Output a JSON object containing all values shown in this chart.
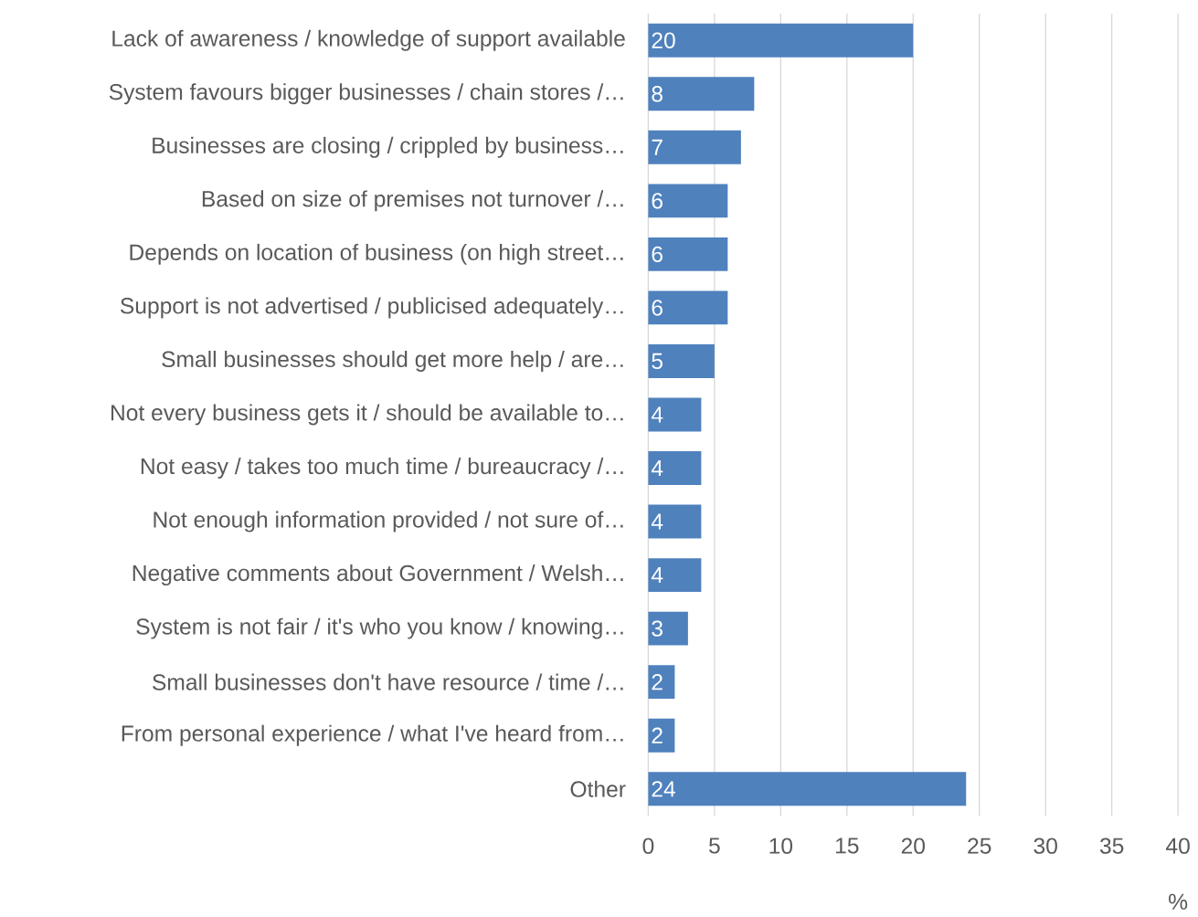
{
  "chart_data": {
    "type": "bar",
    "orientation": "horizontal",
    "categories": [
      "Lack of awareness / knowledge of support available",
      "System favours bigger businesses / chain stores /…",
      "Businesses are closing / crippled by business…",
      "Based on size of premises not turnover /…",
      "Depends on location of business  (on high street…",
      "Support is not advertised / publicised adequately…",
      "Small businesses should get more help / are…",
      "Not every business gets it / should be available to…",
      "Not easy / takes too much time / bureaucracy /…",
      "Not enough information provided   / not sure of…",
      "Negative comments about Government / Welsh…",
      "System is not fair / it's who you know  / knowing…",
      "Small businesses don't have resource / time /…",
      "From personal experience / what I've heard from…",
      "Other"
    ],
    "values": [
      20,
      8,
      7,
      6,
      6,
      6,
      5,
      4,
      4,
      4,
      4,
      3,
      2,
      2,
      24
    ],
    "color": "#4f81bd",
    "xlabel": "%",
    "xlim": [
      0,
      40
    ],
    "xticks": [
      0,
      5,
      10,
      15,
      20,
      25,
      30,
      35,
      40
    ],
    "grid": "x",
    "data_labels": true
  }
}
